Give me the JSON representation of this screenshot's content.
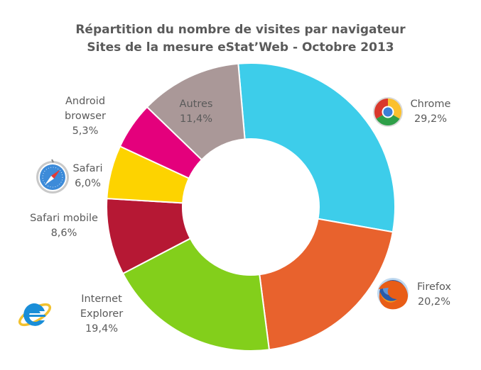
{
  "chart_data": {
    "type": "pie",
    "variant": "donut",
    "title": "Répartition du nombre de visites par navigateur",
    "subtitle": "Sites de la mesure eStat’Web - Octobre 2013",
    "slices": [
      {
        "label": "Chrome",
        "label_lines": [
          "Chrome"
        ],
        "value_text": "29,2%",
        "value": 29.2,
        "color": "#3dcdea",
        "icon": "chrome-icon"
      },
      {
        "label": "Firefox",
        "label_lines": [
          "Firefox"
        ],
        "value_text": "20,2%",
        "value": 20.2,
        "color": "#e8622d",
        "icon": "firefox-icon"
      },
      {
        "label": "Internet Explorer",
        "label_lines": [
          "Internet",
          "Explorer"
        ],
        "value_text": "19,4%",
        "value": 19.4,
        "color": "#83cf1b",
        "icon": "internet-explorer-icon"
      },
      {
        "label": "Safari mobile",
        "label_lines": [
          "Safari mobile"
        ],
        "value_text": "8,6%",
        "value": 8.6,
        "color": "#b61834",
        "icon": ""
      },
      {
        "label": "Safari",
        "label_lines": [
          "Safari"
        ],
        "value_text": "6,0%",
        "value": 6.0,
        "color": "#fdd300",
        "icon": "safari-icon"
      },
      {
        "label": "Android browser",
        "label_lines": [
          "Android",
          "browser"
        ],
        "value_text": "5,3%",
        "value": 5.3,
        "color": "#e4007c",
        "icon": ""
      },
      {
        "label": "Autres",
        "label_lines": [
          "Autres"
        ],
        "value_text": "11,4%",
        "value": 11.4,
        "color": "#aa9898",
        "icon": ""
      }
    ]
  }
}
